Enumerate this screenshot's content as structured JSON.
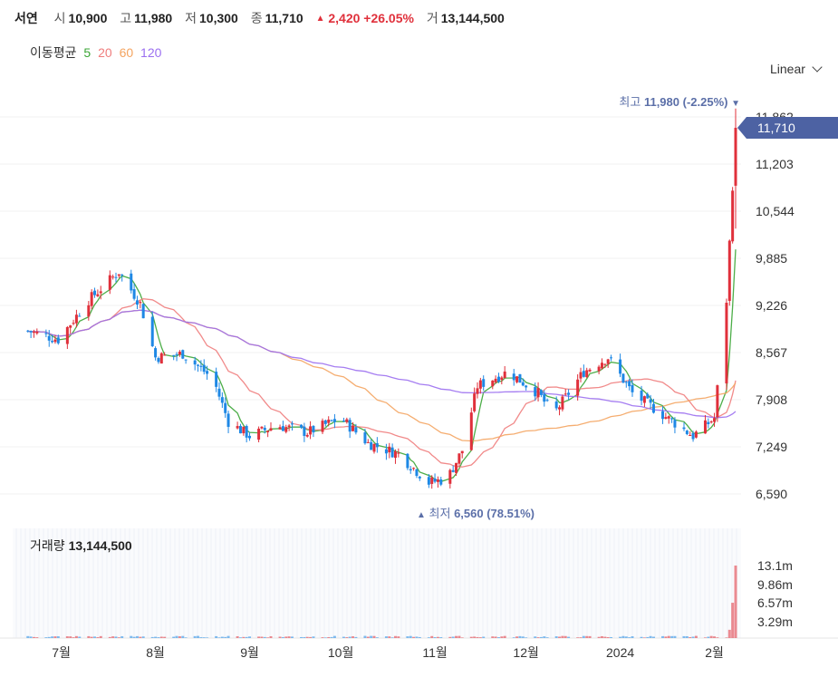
{
  "header": {
    "name": "서연",
    "open_label": "시",
    "open": "10,900",
    "high_label": "고",
    "high": "11,980",
    "low_label": "저",
    "low": "10,300",
    "close_label": "종",
    "close": "11,710",
    "change_arrow": "▲",
    "change": "2,420",
    "change_pct": "+26.05%",
    "volume_label": "거",
    "volume": "13,144,500"
  },
  "ma_legend": {
    "label": "이동평균",
    "items": [
      {
        "text": "5",
        "color": "#3aa535"
      },
      {
        "text": "20",
        "color": "#ef7d7d"
      },
      {
        "text": "60",
        "color": "#f4a460"
      },
      {
        "text": "120",
        "color": "#9b6ff0"
      }
    ]
  },
  "scale_selector": {
    "label": "Linear",
    "icon": "chevron-down-icon"
  },
  "price_axis": [
    "11,862",
    "11,203",
    "10,544",
    "9,885",
    "9,226",
    "8,567",
    "7,908",
    "7,249",
    "6,590"
  ],
  "current_price_tag": "11,710",
  "high_annotation": {
    "label": "최고",
    "value": "11,980 (-2.25%)",
    "arrow": "▼"
  },
  "low_annotation": {
    "label": "최저",
    "value": "6,560 (78.51%)",
    "arrow": "▲"
  },
  "volume_panel": {
    "label": "거래량",
    "value": "13,144,500"
  },
  "volume_axis": [
    "13.1m",
    "9.86m",
    "6.57m",
    "3.29m"
  ],
  "time_axis": [
    "7월",
    "8월",
    "9월",
    "10월",
    "11월",
    "12월",
    "2024",
    "2월"
  ],
  "colors": {
    "up": "#e0303b",
    "down": "#1e88e5",
    "accent": "#4d62a3"
  },
  "chart_data": {
    "type": "candlestick",
    "title": "서연",
    "y_scale": "linear",
    "ylim": [
      6560,
      11980
    ],
    "last_bar": {
      "open": 10900,
      "high": 11980,
      "low": 10300,
      "close": 11710,
      "volume": 13144500
    },
    "price_close_approx": [
      {
        "date": "2023-06-20",
        "close": 8870
      },
      {
        "date": "2023-06-30",
        "close": 8750
      },
      {
        "date": "2023-07-10",
        "close": 9300
      },
      {
        "date": "2023-07-20",
        "close": 9700
      },
      {
        "date": "2023-07-27",
        "close": 9250
      },
      {
        "date": "2023-08-01",
        "close": 8500
      },
      {
        "date": "2023-08-10",
        "close": 8550
      },
      {
        "date": "2023-08-20",
        "close": 8200
      },
      {
        "date": "2023-08-25",
        "close": 7600
      },
      {
        "date": "2023-09-01",
        "close": 7400
      },
      {
        "date": "2023-09-10",
        "close": 7550
      },
      {
        "date": "2023-09-20",
        "close": 7450
      },
      {
        "date": "2023-10-01",
        "close": 7650
      },
      {
        "date": "2023-10-10",
        "close": 7300
      },
      {
        "date": "2023-10-20",
        "close": 7150
      },
      {
        "date": "2023-10-30",
        "close": 6750
      },
      {
        "date": "2023-11-05",
        "close": 6800
      },
      {
        "date": "2023-11-10",
        "close": 7200
      },
      {
        "date": "2023-11-15",
        "close": 8100
      },
      {
        "date": "2023-11-25",
        "close": 8300
      },
      {
        "date": "2023-12-05",
        "close": 8000
      },
      {
        "date": "2023-12-10",
        "close": 7700
      },
      {
        "date": "2023-12-20",
        "close": 8300
      },
      {
        "date": "2023-12-28",
        "close": 8500
      },
      {
        "date": "2024-01-05",
        "close": 8000
      },
      {
        "date": "2024-01-15",
        "close": 7700
      },
      {
        "date": "2024-01-25",
        "close": 7400
      },
      {
        "date": "2024-02-01",
        "close": 7650
      },
      {
        "date": "2024-02-05",
        "close": 9300
      },
      {
        "date": "2024-02-08",
        "close": 11710
      }
    ],
    "volume_last": 13144500
  }
}
